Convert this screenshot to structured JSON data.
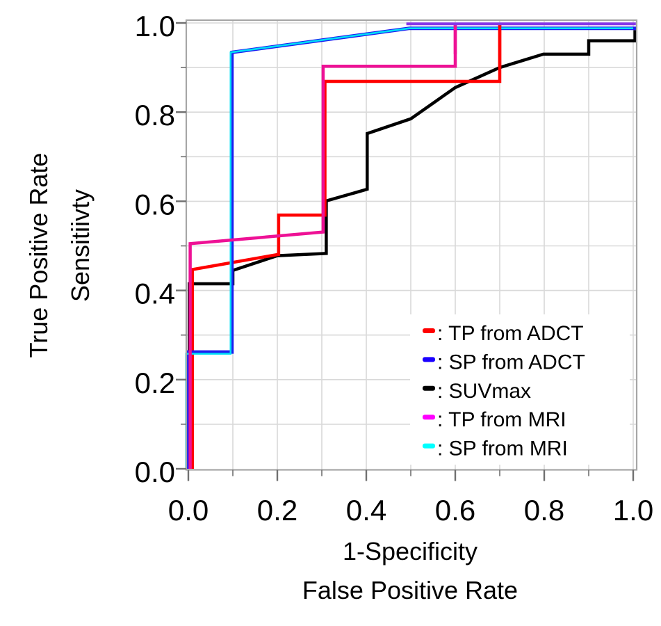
{
  "figure": {
    "x_axis_title_line1": "1-Specificity",
    "x_axis_title_line2": "False Positive Rate",
    "y_axis_title_line1": "True Positive Rate",
    "y_axis_title_line2": "Sensitiivty"
  },
  "chart_data": {
    "type": "line",
    "subtype": "roc_step_curves",
    "title": "",
    "xlabel": [
      "1-Specificity",
      "False Positive Rate"
    ],
    "ylabel": [
      "True Positive Rate",
      "Sensitiivty"
    ],
    "xlim": [
      0,
      1
    ],
    "ylim": [
      0,
      1
    ],
    "x_tick_values": [
      0.0,
      0.2,
      0.4,
      0.6,
      0.8,
      1.0
    ],
    "y_tick_values": [
      0.0,
      0.2,
      0.4,
      0.6,
      0.8,
      1.0
    ],
    "x_tick_labels": [
      "0.0",
      "0.2",
      "0.4",
      "0.6",
      "0.8",
      "1.0"
    ],
    "y_tick_labels": [
      "0.0",
      "0.2",
      "0.4",
      "0.6",
      "0.8",
      "1.0"
    ],
    "minor_step": 0.1,
    "grid": true,
    "grid_color": "#d9d9d9",
    "frame_color": "#a6a6a6",
    "tick_color": "#707070",
    "text_color": "#000000",
    "legend_position": "inside bottom-right",
    "series": [
      {
        "key": "tp_adct",
        "name": "TP from ADCT",
        "color": "#ff0000",
        "legend_color": "#ff0000",
        "width": 4.5,
        "points": [
          [
            0.009,
            0
          ],
          [
            0.009,
            0.447
          ],
          [
            0.203,
            0.481
          ],
          [
            0.203,
            0.569
          ],
          [
            0.307,
            0.569
          ],
          [
            0.307,
            0.869
          ],
          [
            0.7,
            0.869
          ],
          [
            0.7,
            0.996
          ]
        ]
      },
      {
        "key": "sp_adct",
        "name": "SP from ADCT",
        "color": "#1c1cf0",
        "legend_color": "#1a00ff",
        "width": 5,
        "points": [
          [
            0,
            0
          ],
          [
            0,
            0.262
          ],
          [
            0.098,
            0.262
          ],
          [
            0.098,
            0.934
          ],
          [
            0.497,
            0.988
          ],
          [
            1.008,
            0.988
          ]
        ]
      },
      {
        "key": "suvmax",
        "name": "SUVmax",
        "color": "#000000",
        "legend_color": "#000000",
        "width": 4.5,
        "points": [
          [
            0.002,
            0
          ],
          [
            0.002,
            0.415
          ],
          [
            0.1,
            0.415
          ],
          [
            0.1,
            0.445
          ],
          [
            0.2,
            0.478
          ],
          [
            0.31,
            0.483
          ],
          [
            0.31,
            0.601
          ],
          [
            0.402,
            0.627
          ],
          [
            0.402,
            0.752
          ],
          [
            0.5,
            0.785
          ],
          [
            0.6,
            0.855
          ],
          [
            0.7,
            0.9
          ],
          [
            0.798,
            0.93
          ],
          [
            0.9,
            0.93
          ],
          [
            0.9,
            0.96
          ],
          [
            1.004,
            0.96
          ],
          [
            1.004,
            0.984
          ]
        ]
      },
      {
        "key": "tp_mri",
        "name": "TP from MRI",
        "color": "#ee1195",
        "legend_color": "#ff00ff",
        "width": 4.5,
        "points": [
          [
            0.004,
            0
          ],
          [
            0.004,
            0.505
          ],
          [
            0.303,
            0.531
          ],
          [
            0.303,
            0.903
          ],
          [
            0.6,
            0.903
          ],
          [
            0.6,
            0.996
          ]
        ]
      },
      {
        "key": "sp_mri",
        "name": "SP from MRI",
        "color": "#00dff5",
        "legend_color": "#00ffff",
        "width": 2.6,
        "points": [
          [
            -0.005,
            0
          ],
          [
            -0.005,
            0.258
          ],
          [
            0.095,
            0.258
          ],
          [
            0.095,
            0.934
          ],
          [
            0.497,
            0.988
          ],
          [
            1.0,
            0.988
          ]
        ]
      }
    ],
    "draw_order": [
      "suvmax",
      "tp_adct",
      "sp_adct",
      "sp_mri",
      "tp_mri"
    ],
    "overlays": [
      {
        "key": "tp_adct_top_jump",
        "color": "#ff0000",
        "width": 4.5,
        "points": [
          [
            0.7,
            0.9
          ],
          [
            0.7,
            0.996
          ]
        ]
      },
      {
        "key": "tp_mri_top_jump",
        "color": "#ee1195",
        "width": 4.5,
        "points": [
          [
            0.6,
            0.93
          ],
          [
            0.6,
            0.996
          ]
        ]
      },
      {
        "key": "overlap_top_line",
        "color": "#8637e8",
        "width": 4,
        "points": [
          [
            0.49,
            0.998
          ],
          [
            1.006,
            0.998
          ]
        ]
      }
    ]
  },
  "legend": {
    "entries": [
      {
        "label": "TP from ADCT",
        "color": "#ff0000"
      },
      {
        "label": "SP from ADCT",
        "color": "#1a00ff"
      },
      {
        "label": "SUVmax",
        "color": "#000000"
      },
      {
        "label": "TP from MRI",
        "color": "#ff00ff"
      },
      {
        "label": "SP from MRI",
        "color": "#00ffff"
      }
    ],
    "separator": ":"
  }
}
